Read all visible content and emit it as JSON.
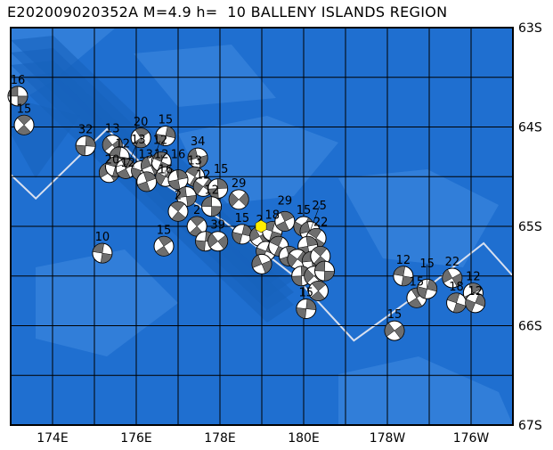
{
  "title": "E202009020352A M=4.9 h=  10 BALLENY ISLANDS REGION",
  "map": {
    "lon_range": [
      173,
      185
    ],
    "lat_range": [
      -63,
      -67
    ],
    "lon_grid_step": 1,
    "lat_grid_step": 0.5,
    "lat_labels": [
      {
        "lat": -63,
        "text": "63S"
      },
      {
        "lat": -64,
        "text": "64S"
      },
      {
        "lat": -65,
        "text": "65S"
      },
      {
        "lat": -66,
        "text": "66S"
      },
      {
        "lat": -67,
        "text": "67S"
      }
    ],
    "lon_labels": [
      {
        "lon": 174,
        "text": "174E"
      },
      {
        "lon": 176,
        "text": "176E"
      },
      {
        "lon": 178,
        "text": "178E"
      },
      {
        "lon": 180,
        "text": "180E"
      },
      {
        "lon": 182,
        "text": "178W"
      },
      {
        "lon": 184,
        "text": "176W"
      }
    ],
    "colors": {
      "ocean": "#1f6fd0",
      "shallow": "#3f8ae0",
      "deep": "#1762bd",
      "boundary": "#d8e0f0",
      "grid": "#000000",
      "compression": "#6e6e6e",
      "event": "#ffee00"
    },
    "plate_boundary": [
      [
        173,
        -64.48
      ],
      [
        173.6,
        -64.72
      ],
      [
        175.3,
        -64.02
      ],
      [
        176.5,
        -64.53
      ],
      [
        178.1,
        -64.95
      ],
      [
        179.8,
        -65.51
      ],
      [
        181.2,
        -66.15
      ],
      [
        183,
        -65.6
      ],
      [
        184.3,
        -65.17
      ],
      [
        185,
        -65.5
      ]
    ]
  },
  "main_event": {
    "lon": 178.98,
    "lat": -65.0,
    "label": "E202009020352A"
  },
  "events": [
    {
      "lon": 173.17,
      "lat": -63.69,
      "label": "16"
    },
    {
      "lon": 173.32,
      "lat": -63.98,
      "label": "15"
    },
    {
      "lon": 174.79,
      "lat": -64.19,
      "label": "32"
    },
    {
      "lon": 175.43,
      "lat": -64.18,
      "label": "13"
    },
    {
      "lon": 175.6,
      "lat": -64.3,
      "label": "12"
    },
    {
      "lon": 176.11,
      "lat": -64.11,
      "label": "20"
    },
    {
      "lon": 176.7,
      "lat": -64.09,
      "label": "15"
    },
    {
      "lon": 175.35,
      "lat": -64.46,
      "label": "20"
    },
    {
      "lon": 175.5,
      "lat": -64.4,
      "label": "12"
    },
    {
      "lon": 175.75,
      "lat": -64.42,
      "label": "13"
    },
    {
      "lon": 176.12,
      "lat": -64.44,
      "label": "13"
    },
    {
      "lon": 176.35,
      "lat": -64.39,
      "label": "12"
    },
    {
      "lon": 176.6,
      "lat": -64.35,
      "label": "12"
    },
    {
      "lon": 176.25,
      "lat": -64.55,
      "label": ""
    },
    {
      "lon": 176.7,
      "lat": -64.5,
      "label": "16"
    },
    {
      "lon": 177.47,
      "lat": -64.31,
      "label": "34"
    },
    {
      "lon": 177.4,
      "lat": -64.5,
      "label": "13"
    },
    {
      "lon": 177.0,
      "lat": -64.53,
      "label": "16"
    },
    {
      "lon": 177.6,
      "lat": -64.6,
      "label": "12"
    },
    {
      "lon": 177.2,
      "lat": -64.7,
      "label": ""
    },
    {
      "lon": 177.0,
      "lat": -64.85,
      "label": "2"
    },
    {
      "lon": 177.95,
      "lat": -64.62,
      "label": "15"
    },
    {
      "lon": 178.45,
      "lat": -64.73,
      "label": "29"
    },
    {
      "lon": 177.8,
      "lat": -64.8,
      "label": "12"
    },
    {
      "lon": 177.45,
      "lat": -65.0,
      "label": "2"
    },
    {
      "lon": 177.65,
      "lat": -65.15,
      "label": ""
    },
    {
      "lon": 177.95,
      "lat": -65.15,
      "label": "39"
    },
    {
      "lon": 175.19,
      "lat": -65.27,
      "label": "10"
    },
    {
      "lon": 176.66,
      "lat": -65.2,
      "label": "15"
    },
    {
      "lon": 178.53,
      "lat": -65.08,
      "label": "15"
    },
    {
      "lon": 178.95,
      "lat": -65.1,
      "label": "2"
    },
    {
      "lon": 179.25,
      "lat": -65.05,
      "label": "18"
    },
    {
      "lon": 179.55,
      "lat": -64.95,
      "label": "29"
    },
    {
      "lon": 179.1,
      "lat": -65.25,
      "label": ""
    },
    {
      "lon": 179.0,
      "lat": -65.38,
      "label": ""
    },
    {
      "lon": 179.4,
      "lat": -65.2,
      "label": ""
    },
    {
      "lon": 179.65,
      "lat": -65.3,
      "label": ""
    },
    {
      "lon": 180.0,
      "lat": -65.0,
      "label": "15"
    },
    {
      "lon": 180.15,
      "lat": -65.05,
      "label": "25"
    },
    {
      "lon": 180.3,
      "lat": -65.12,
      "label": "22"
    },
    {
      "lon": 180.1,
      "lat": -65.2,
      "label": ""
    },
    {
      "lon": 179.85,
      "lat": -65.33,
      "label": ""
    },
    {
      "lon": 180.2,
      "lat": -65.35,
      "label": ""
    },
    {
      "lon": 180.4,
      "lat": -65.3,
      "label": ""
    },
    {
      "lon": 179.95,
      "lat": -65.5,
      "label": ""
    },
    {
      "lon": 180.25,
      "lat": -65.5,
      "label": ""
    },
    {
      "lon": 180.5,
      "lat": -65.45,
      "label": ""
    },
    {
      "lon": 180.35,
      "lat": -65.65,
      "label": ""
    },
    {
      "lon": 180.06,
      "lat": -65.83,
      "label": "15"
    },
    {
      "lon": 182.17,
      "lat": -66.05,
      "label": "15"
    },
    {
      "lon": 182.38,
      "lat": -65.5,
      "label": "12"
    },
    {
      "lon": 182.7,
      "lat": -65.72,
      "label": "15"
    },
    {
      "lon": 182.95,
      "lat": -65.63,
      "label": "15"
    },
    {
      "lon": 183.55,
      "lat": -65.52,
      "label": "22"
    },
    {
      "lon": 183.65,
      "lat": -65.77,
      "label": "18"
    },
    {
      "lon": 184.05,
      "lat": -65.67,
      "label": "12"
    },
    {
      "lon": 184.1,
      "lat": -65.77,
      "label": "12"
    }
  ]
}
